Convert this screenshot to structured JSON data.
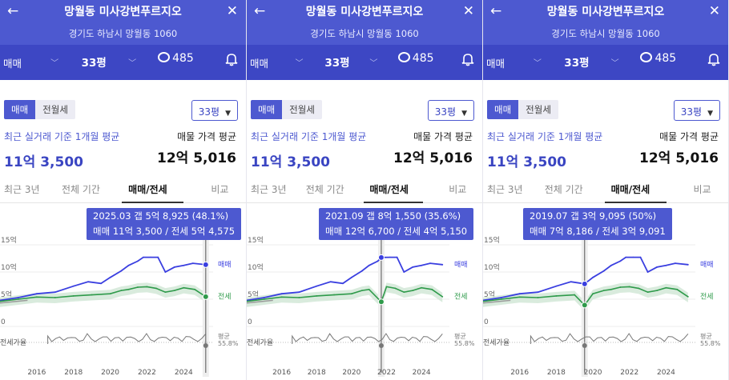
{
  "common": {
    "title": "망월동 미사강변푸르지오",
    "address": "경기도 하남시 망월동 1060",
    "trade_type": "매매",
    "size": "33평",
    "comments": "485",
    "seg_trade": "매매",
    "seg_rent": "전월세",
    "size_select": "33평",
    "recent_label": "최근 실거래 기준 1개월 평균",
    "recent_value": "11억 3,500",
    "ask_label": "매물 가격 평균",
    "ask_value": "12억 5,016",
    "tabs": [
      "최근 3년",
      "전체 기간",
      "매매/전세",
      "비교"
    ],
    "active_tab": 2,
    "y_ticks": [
      "15억",
      "10억",
      "5억",
      "0"
    ],
    "ratio_axis_label": "전세가율",
    "x_ticks": [
      "2016",
      "2018",
      "2020",
      "2022",
      "2024"
    ],
    "series_trade": "매매",
    "series_rent": "전세",
    "ratio_label_1": "평균",
    "ratio_label_2": "55.8%"
  },
  "panels": [
    {
      "tooltip_line1": "2025.03  갭 5억 8,925 (48.1%)",
      "tooltip_line2": "매매 11억 3,500 / 전세 5억 4,575"
    },
    {
      "tooltip_line1": "2021.09  갭 8억 1,550 (35.6%)",
      "tooltip_line2": "매매 12억 6,700 / 전세 4억 5,150"
    },
    {
      "tooltip_line1": "2019.07  갭 3억 9,095 (50%)",
      "tooltip_line2": "매매 7억 8,186 / 전세 3억 9,091"
    }
  ],
  "chart_data": [
    {
      "type": "line",
      "x_range": [
        2014.0,
        2025.6
      ],
      "ylim": [
        0,
        15
      ],
      "cursor_date": "2025.03",
      "cursor_x": 2025.2,
      "cursor_trade": 11.35,
      "cursor_rent": 5.4575,
      "series": [
        {
          "name": "매매",
          "x": [
            2014.0,
            2015.0,
            2016.0,
            2017.0,
            2018.0,
            2018.8,
            2019.5,
            2020.0,
            2020.6,
            2021.0,
            2021.5,
            2021.8,
            2022.2,
            2022.6,
            2023.0,
            2023.5,
            2024.0,
            2024.5,
            2025.2
          ],
          "values": [
            4.8,
            5.3,
            6.0,
            6.3,
            7.4,
            8.2,
            7.9,
            9.0,
            10.2,
            11.2,
            12.0,
            12.7,
            12.7,
            12.7,
            10.0,
            10.9,
            11.2,
            11.6,
            11.35
          ]
        },
        {
          "name": "전세",
          "x": [
            2014.0,
            2015.0,
            2016.0,
            2017.0,
            2018.0,
            2019.0,
            2020.0,
            2020.6,
            2021.0,
            2021.5,
            2022.0,
            2022.5,
            2023.0,
            2023.5,
            2024.0,
            2024.6,
            2025.2
          ],
          "values": [
            4.6,
            5.0,
            5.4,
            5.3,
            5.6,
            5.8,
            6.0,
            6.6,
            6.8,
            7.2,
            7.3,
            7.0,
            6.3,
            6.6,
            7.1,
            6.8,
            5.4575
          ]
        }
      ]
    },
    {
      "type": "line",
      "x_range": [
        2014.0,
        2025.6
      ],
      "ylim": [
        0,
        15
      ],
      "cursor_date": "2021.09",
      "cursor_x": 2021.7,
      "cursor_trade": 12.67,
      "cursor_rent": 4.515,
      "series": [
        {
          "name": "매매",
          "x": [
            2014.0,
            2015.0,
            2016.0,
            2017.0,
            2018.0,
            2018.8,
            2019.5,
            2020.0,
            2020.6,
            2021.0,
            2021.5,
            2021.7,
            2022.2,
            2022.6,
            2023.0,
            2023.5,
            2024.0,
            2024.5,
            2025.2
          ],
          "values": [
            4.8,
            5.3,
            6.0,
            6.3,
            7.4,
            8.2,
            7.9,
            9.0,
            10.2,
            11.2,
            12.0,
            12.67,
            12.7,
            12.7,
            10.0,
            10.9,
            11.2,
            11.6,
            11.35
          ]
        },
        {
          "name": "전세",
          "x": [
            2014.0,
            2015.0,
            2016.0,
            2017.0,
            2018.0,
            2019.0,
            2020.0,
            2020.6,
            2021.0,
            2021.7,
            2022.0,
            2022.5,
            2023.0,
            2023.5,
            2024.0,
            2024.6,
            2025.2
          ],
          "values": [
            4.6,
            5.0,
            5.4,
            5.3,
            5.6,
            5.8,
            6.0,
            6.6,
            6.8,
            4.515,
            7.3,
            7.0,
            6.3,
            6.6,
            7.1,
            6.8,
            5.46
          ]
        }
      ]
    },
    {
      "type": "line",
      "x_range": [
        2014.0,
        2025.6
      ],
      "ylim": [
        0,
        15
      ],
      "cursor_date": "2019.07",
      "cursor_x": 2019.55,
      "cursor_trade": 7.8186,
      "cursor_rent": 3.9091,
      "series": [
        {
          "name": "매매",
          "x": [
            2014.0,
            2015.0,
            2016.0,
            2017.0,
            2018.0,
            2018.8,
            2019.55,
            2020.0,
            2020.6,
            2021.0,
            2021.5,
            2021.8,
            2022.2,
            2022.6,
            2023.0,
            2023.5,
            2024.0,
            2024.5,
            2025.2
          ],
          "values": [
            4.8,
            5.3,
            6.0,
            6.3,
            7.4,
            8.2,
            7.8186,
            9.0,
            10.2,
            11.2,
            12.0,
            12.7,
            12.7,
            12.7,
            10.0,
            10.9,
            11.2,
            11.6,
            11.35
          ]
        },
        {
          "name": "전세",
          "x": [
            2014.0,
            2015.0,
            2016.0,
            2017.0,
            2018.0,
            2019.0,
            2019.55,
            2020.0,
            2020.6,
            2021.0,
            2021.5,
            2022.0,
            2022.5,
            2023.0,
            2023.5,
            2024.0,
            2024.6,
            2025.2
          ],
          "values": [
            4.6,
            5.0,
            5.4,
            5.3,
            5.6,
            5.8,
            3.9091,
            6.0,
            6.6,
            6.8,
            7.2,
            7.3,
            7.0,
            6.3,
            6.6,
            7.1,
            6.8,
            5.46
          ]
        }
      ]
    }
  ]
}
